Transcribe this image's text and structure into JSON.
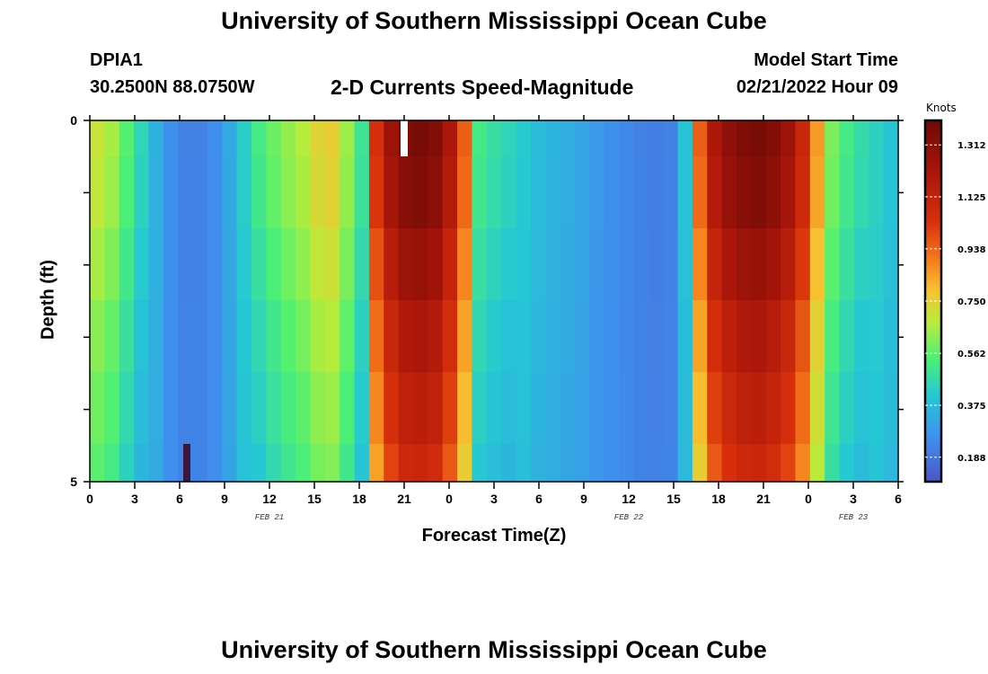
{
  "title": "University of Southern Mississippi Ocean Cube",
  "station": {
    "id": "DPIA1",
    "coords": "30.2500N  88.0750W"
  },
  "plot_title": "2-D Currents Speed-Magnitude",
  "model_start": {
    "label": "Model Start Time",
    "value": "02/21/2022 Hour 09"
  },
  "footer_title": "University of Southern Mississippi Ocean Cube",
  "chart_data": {
    "type": "heatmap",
    "title": "2-D Currents Speed-Magnitude",
    "xlabel": "Forecast Time(Z)",
    "ylabel": "Depth (ft)",
    "x_tick_labels": [
      "0",
      "3",
      "6",
      "9",
      "12",
      "15",
      "18",
      "21",
      "0",
      "3",
      "6",
      "9",
      "12",
      "15",
      "18",
      "21",
      "0",
      "3",
      "6"
    ],
    "y_tick_labels": [
      "0",
      "5"
    ],
    "ylim": [
      0,
      5
    ],
    "date_labels": [
      {
        "text": "FEB 21",
        "at_hour": 12
      },
      {
        "text": "FEB 22",
        "at_hour": 36
      },
      {
        "text": "FEB 23",
        "at_hour": 51
      }
    ],
    "colorbar": {
      "units": "Knots",
      "ticks": [
        "1.312",
        "1.125",
        "0.938",
        "0.750",
        "0.562",
        "0.375",
        "0.188"
      ],
      "range": [
        0.1,
        1.4
      ]
    },
    "time_hours": [
      0,
      1,
      2,
      3,
      4,
      5,
      6,
      7,
      8,
      9,
      10,
      11,
      12,
      13,
      14,
      15,
      16,
      17,
      18,
      19,
      20,
      21,
      22,
      23,
      24,
      25,
      26,
      27,
      28,
      29,
      30,
      31,
      32,
      33,
      34,
      35,
      36,
      37,
      38,
      39,
      40,
      41,
      42,
      43,
      44,
      45,
      46,
      47,
      48,
      49,
      50,
      51,
      52,
      53,
      54
    ],
    "depth_layers_ft": [
      0,
      1,
      2,
      3,
      4,
      4.5
    ],
    "speed_knots_surface": [
      0.7,
      0.65,
      0.55,
      0.45,
      0.35,
      0.26,
      0.22,
      0.22,
      0.25,
      0.33,
      0.43,
      0.52,
      0.58,
      0.63,
      0.67,
      0.74,
      0.76,
      0.64,
      0.5,
      1.05,
      1.25,
      1.35,
      1.37,
      1.34,
      1.2,
      0.95,
      0.52,
      0.48,
      0.45,
      0.42,
      0.38,
      0.36,
      0.34,
      0.32,
      0.28,
      0.26,
      0.24,
      0.22,
      0.21,
      0.22,
      0.4,
      0.95,
      1.2,
      1.3,
      1.35,
      1.37,
      1.33,
      1.25,
      1.1,
      0.85,
      0.6,
      0.52,
      0.47,
      0.44,
      0.4
    ],
    "layer_scale": [
      1.0,
      0.98,
      0.93,
      0.88,
      0.84,
      0.8
    ]
  }
}
